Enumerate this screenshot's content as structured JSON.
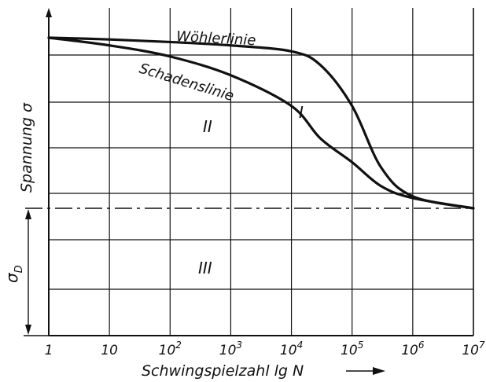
{
  "chart_data": {
    "type": "line",
    "xlabel": "Schwingspielzahl  lg N",
    "ylabel": "Spannung σ",
    "x_scale": "log10",
    "x_ticks": [
      {
        "value": 1,
        "base": "1",
        "exp": ""
      },
      {
        "value": 10,
        "base": "10",
        "exp": ""
      },
      {
        "value": 100,
        "base": "10",
        "exp": "2"
      },
      {
        "value": 1000,
        "base": "10",
        "exp": "3"
      },
      {
        "value": 10000,
        "base": "10",
        "exp": "4"
      },
      {
        "value": 100000,
        "base": "10",
        "exp": "5"
      },
      {
        "value": 1000000,
        "base": "10",
        "exp": "6"
      },
      {
        "value": 10000000,
        "base": "10",
        "exp": "7"
      }
    ],
    "grid": true,
    "fatigue_limit_label": "σ",
    "fatigue_limit_sub": "D",
    "series": [
      {
        "name": "Wöhlerlinie",
        "x": [
          1,
          10,
          100,
          1000,
          10000,
          30000,
          100000,
          300000,
          1000000,
          10000000
        ],
        "y": [
          1.0,
          0.99,
          0.975,
          0.955,
          0.92,
          0.84,
          0.6,
          0.24,
          0.07,
          0.0
        ]
      },
      {
        "name": "Schadenslinie",
        "x": [
          1,
          10,
          100,
          1000,
          10000,
          30000,
          100000,
          300000,
          1000000,
          10000000
        ],
        "y": [
          1.0,
          0.955,
          0.89,
          0.78,
          0.6,
          0.41,
          0.27,
          0.13,
          0.06,
          0.0
        ]
      }
    ],
    "region_labels": [
      "I",
      "II",
      "III"
    ]
  }
}
